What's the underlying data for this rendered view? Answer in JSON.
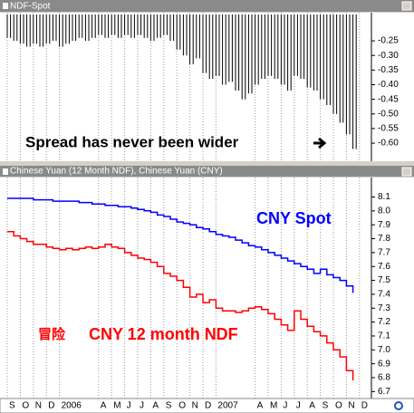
{
  "chart_data": [
    {
      "type": "bar",
      "title": "NDF-Spot",
      "annotation": "Spread has never been wider",
      "color": "#000000",
      "values": [
        -0.24,
        -0.25,
        -0.26,
        -0.27,
        -0.26,
        -0.27,
        -0.26,
        -0.25,
        -0.27,
        -0.26,
        -0.25,
        -0.24,
        -0.25,
        -0.24,
        -0.23,
        -0.24,
        -0.23,
        -0.24,
        -0.23,
        -0.24,
        -0.23,
        -0.24,
        -0.25,
        -0.24,
        -0.23,
        -0.25,
        -0.28,
        -0.3,
        -0.33,
        -0.31,
        -0.36,
        -0.38,
        -0.37,
        -0.4,
        -0.39,
        -0.42,
        -0.45,
        -0.43,
        -0.4,
        -0.38,
        -0.37,
        -0.38,
        -0.4,
        -0.42,
        -0.37,
        -0.38,
        -0.41,
        -0.42,
        -0.45,
        -0.47,
        -0.5,
        -0.53,
        -0.57,
        -0.62,
        null
      ],
      "ylim": [
        -0.64,
        -0.16
      ],
      "yticks": [
        -0.25,
        {
          "value": -0.3,
          "label": "-0.30"
        },
        -0.35,
        {
          "value": -0.4,
          "label": "-0.40"
        },
        -0.45,
        {
          "value": -0.5,
          "label": "-0.50"
        },
        -0.55,
        {
          "value": -0.6,
          "label": "-0.60"
        }
      ],
      "grid": true
    },
    {
      "type": "line",
      "title": "Chinese Yuan (12 Month NDF), Chinese Yuan (CNY)",
      "annotations": [
        "CNY Spot",
        "冒险",
        "CNY 12 month NDF"
      ],
      "categories": [
        "S",
        null,
        "O",
        null,
        "N",
        null,
        "D",
        null,
        "2006",
        null,
        null,
        null,
        null,
        null,
        "A",
        null,
        "M",
        null,
        "J",
        null,
        "J",
        null,
        "A",
        null,
        "S",
        null,
        "O",
        null,
        "N",
        null,
        "D",
        null,
        "2007",
        null,
        null,
        null,
        null,
        null,
        "A",
        null,
        "M",
        null,
        "J",
        null,
        "J",
        null,
        "A",
        null,
        "S",
        null,
        "O",
        null,
        "N",
        null,
        "D"
      ],
      "series": [
        {
          "name": "CNY Spot",
          "color": "#0000ff",
          "values": [
            8.09,
            8.09,
            8.09,
            8.09,
            8.08,
            8.08,
            8.08,
            8.07,
            8.07,
            8.07,
            8.07,
            8.06,
            8.06,
            8.05,
            8.05,
            8.04,
            8.04,
            8.03,
            8.03,
            8.02,
            8.01,
            8.0,
            7.99,
            7.97,
            7.96,
            7.94,
            7.92,
            7.91,
            7.9,
            7.88,
            7.87,
            7.85,
            7.83,
            7.82,
            7.81,
            7.79,
            7.77,
            7.75,
            7.74,
            7.72,
            7.7,
            7.68,
            7.66,
            7.64,
            7.62,
            7.6,
            7.58,
            7.55,
            7.58,
            7.54,
            7.52,
            7.5,
            7.46,
            7.41,
            null
          ]
        },
        {
          "name": "CNY 12 month NDF",
          "color": "#ff0000",
          "values": [
            7.85,
            7.82,
            7.8,
            7.78,
            7.76,
            7.76,
            7.74,
            7.73,
            7.72,
            7.73,
            7.72,
            7.73,
            7.74,
            7.73,
            7.74,
            7.76,
            7.74,
            7.73,
            7.7,
            7.68,
            7.66,
            7.65,
            7.63,
            7.6,
            7.55,
            7.53,
            7.5,
            7.45,
            7.38,
            7.4,
            7.34,
            7.36,
            7.3,
            7.28,
            7.28,
            7.27,
            7.28,
            7.3,
            7.31,
            7.29,
            7.26,
            7.22,
            7.18,
            7.14,
            7.28,
            7.22,
            7.17,
            7.13,
            7.1,
            7.05,
            7.0,
            6.95,
            6.85,
            6.78,
            null
          ]
        }
      ],
      "ylim": [
        6.65,
        8.24
      ],
      "yticks": [
        8.1,
        {
          "value": 8.0,
          "label": "8.0"
        },
        7.9,
        7.8,
        7.7,
        7.6,
        7.5,
        7.4,
        7.3,
        7.2,
        7.1,
        {
          "value": 7.0,
          "label": "7.0"
        },
        6.9,
        6.8,
        6.7
      ],
      "grid": true
    }
  ]
}
